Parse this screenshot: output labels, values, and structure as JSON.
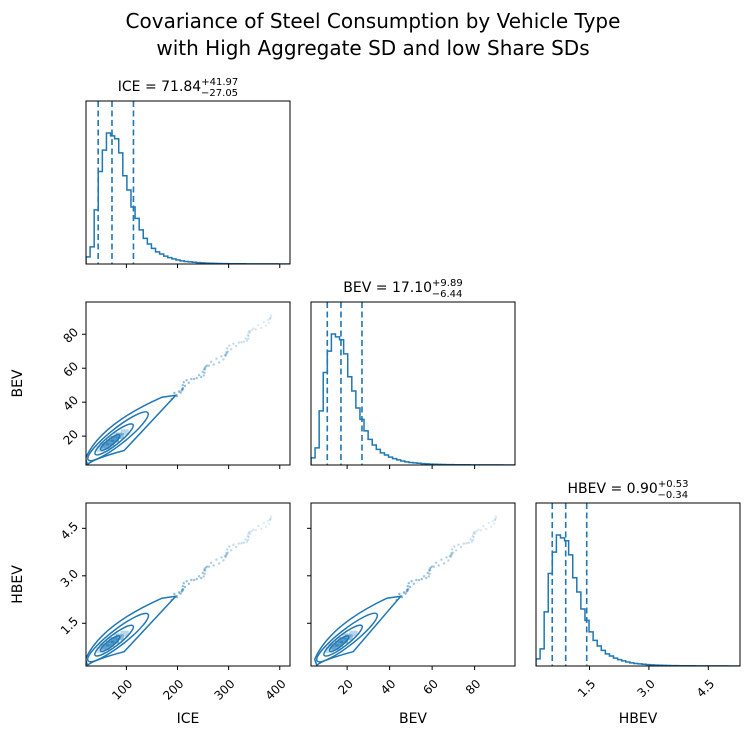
{
  "chart_data": {
    "type": "corner",
    "title_line1": "Covariance of Steel Consumption by Vehicle Type",
    "title_line2": "with High Aggregate SD and low Share SDs",
    "color": "#1f77b4",
    "variables": [
      {
        "name": "ICE",
        "median": 71.84,
        "plus": 41.97,
        "minus": 27.05,
        "median_label": "71.84",
        "plus_label": "+41.97",
        "minus_label": "−27.05",
        "range": [
          21,
          420
        ],
        "ticks": [
          100,
          200,
          300,
          400
        ],
        "tick_labels": [
          "100",
          "200",
          "300",
          "400"
        ],
        "dashed_lines": [
          44.79,
          71.84,
          113.81
        ],
        "hist_edges_start": 21,
        "hist_bin_width": 8,
        "hist_counts": [
          5,
          12,
          38,
          65,
          80,
          92,
          90,
          88,
          78,
          62,
          52,
          40,
          32,
          24,
          18,
          14,
          11,
          8.5,
          7,
          5.5,
          4.5,
          3.6,
          2.8,
          2.2,
          1.8,
          1.5,
          1.2,
          1.0,
          0.8,
          0.6,
          0.5,
          0.4,
          0.35,
          0.3,
          0.25,
          0.2,
          0.2,
          0.15,
          0.15,
          0.12,
          0.1,
          0.1,
          0.08,
          0.08,
          0.06,
          0.05,
          0.05,
          0.04,
          0.03,
          0.02
        ]
      },
      {
        "name": "BEV",
        "median": 17.1,
        "plus": 9.89,
        "minus": 6.44,
        "median_label": "17.10",
        "plus_label": "+9.89",
        "minus_label": "−6.44",
        "range": [
          3,
          99
        ],
        "ticks": [
          20,
          40,
          60,
          80
        ],
        "tick_labels": [
          "20",
          "40",
          "60",
          "80"
        ],
        "dashed_lines": [
          10.66,
          17.1,
          26.99
        ],
        "hist_edges_start": 3,
        "hist_bin_width": 1.92,
        "hist_counts": [
          5,
          12,
          38,
          65,
          80,
          92,
          90,
          88,
          78,
          62,
          52,
          40,
          32,
          24,
          18,
          14,
          11,
          8.5,
          7,
          5.5,
          4.5,
          3.6,
          2.8,
          2.2,
          1.8,
          1.5,
          1.2,
          1.0,
          0.8,
          0.6,
          0.5,
          0.4,
          0.35,
          0.3,
          0.25,
          0.2,
          0.2,
          0.15,
          0.15,
          0.12,
          0.1,
          0.1,
          0.08,
          0.08,
          0.06,
          0.05,
          0.05,
          0.04,
          0.03,
          0.02
        ]
      },
      {
        "name": "HBEV",
        "median": 0.9,
        "plus": 0.53,
        "minus": 0.34,
        "median_label": "0.90",
        "plus_label": "+0.53",
        "minus_label": "−0.34",
        "range": [
          0.15,
          5.3
        ],
        "ticks": [
          1.5,
          3.0,
          4.5
        ],
        "tick_labels": [
          "1.5",
          "3.0",
          "4.5"
        ],
        "dashed_lines": [
          0.56,
          0.9,
          1.43
        ],
        "hist_edges_start": 0.15,
        "hist_bin_width": 0.103,
        "hist_counts": [
          5,
          12,
          38,
          65,
          80,
          92,
          90,
          88,
          78,
          62,
          52,
          40,
          32,
          24,
          18,
          14,
          11,
          8.5,
          7,
          5.5,
          4.5,
          3.6,
          2.8,
          2.2,
          1.8,
          1.5,
          1.2,
          1.0,
          0.8,
          0.6,
          0.5,
          0.4,
          0.35,
          0.3,
          0.25,
          0.2,
          0.2,
          0.15,
          0.15,
          0.12,
          0.1,
          0.1,
          0.08,
          0.08,
          0.06,
          0.05,
          0.05,
          0.04,
          0.03,
          0.02
        ]
      }
    ],
    "scatter_trend": {
      "points": [
        [
          200,
          47
        ],
        [
          240,
          57
        ],
        [
          280,
          67
        ],
        [
          320,
          76
        ],
        [
          360,
          84
        ],
        [
          390,
          88
        ]
      ],
      "note_ratio_bev_ice": 0.236,
      "note_ratio_hbev_ice": 0.0125
    }
  }
}
